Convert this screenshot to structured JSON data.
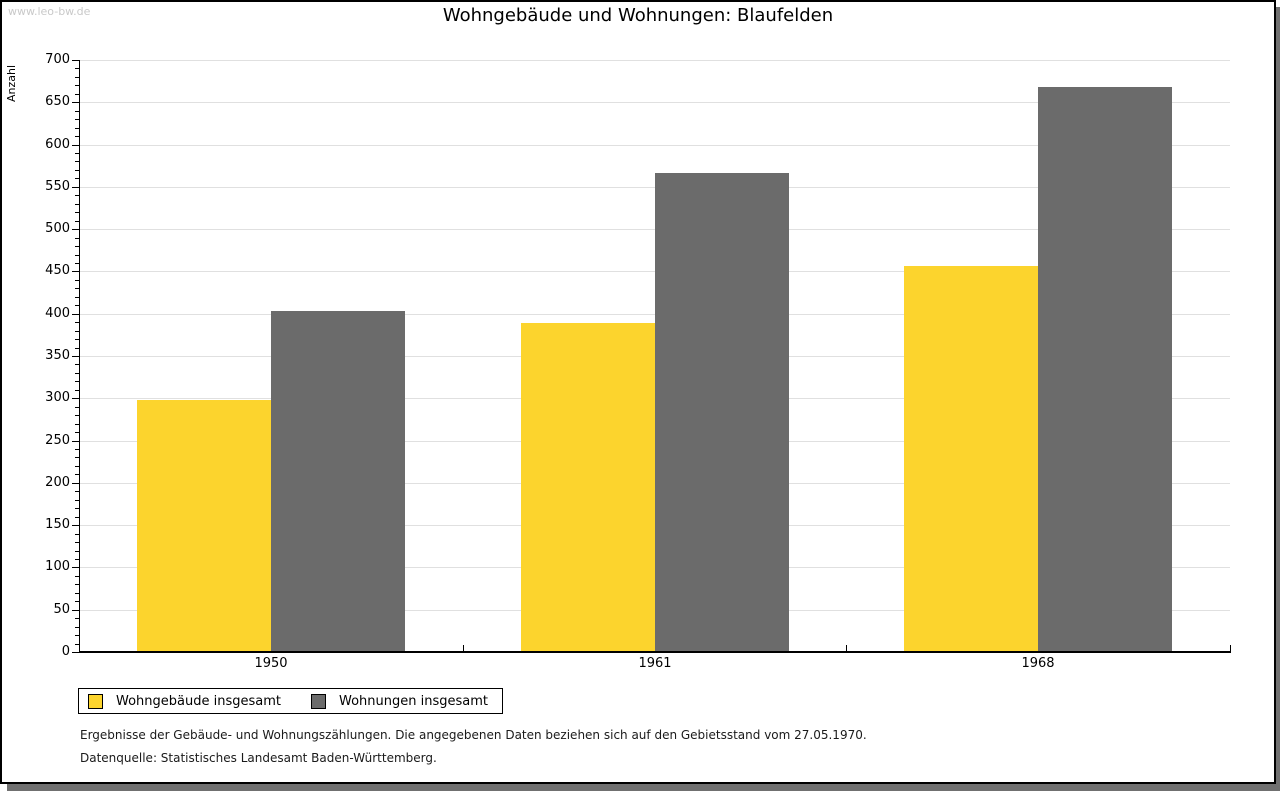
{
  "watermark": "www.leo-bw.de",
  "title": "Wohngebäude und Wohnungen: Blaufelden",
  "chart_data": {
    "type": "bar",
    "title": "Wohngebäude und Wohnungen: Blaufelden",
    "xlabel": "",
    "ylabel": "Anzahl",
    "categories": [
      "1950",
      "1961",
      "1968"
    ],
    "series": [
      {
        "name": "Wohngebäude insgesamt",
        "color": "#fcd42d",
        "values": [
          298,
          389,
          456
        ]
      },
      {
        "name": "Wohnungen insgesamt",
        "color": "#6b6b6b",
        "values": [
          403,
          566,
          668
        ]
      }
    ],
    "ylim": [
      0,
      700
    ],
    "ytick_step": 50,
    "yminor_step": 10,
    "grid": true,
    "gridline_color": "#e0e0e0",
    "legend_position": "bottom-left"
  },
  "legend": {
    "items": [
      {
        "label": "Wohngebäude insgesamt",
        "color": "#fcd42d"
      },
      {
        "label": "Wohnungen insgesamt",
        "color": "#6b6b6b"
      }
    ]
  },
  "footer": {
    "line1": "Ergebnisse der Gebäude- und Wohnungszählungen. Die angegebenen Daten beziehen sich auf den Gebietsstand vom 27.05.1970.",
    "line2": "Datenquelle: Statistisches Landesamt Baden-Württemberg."
  }
}
